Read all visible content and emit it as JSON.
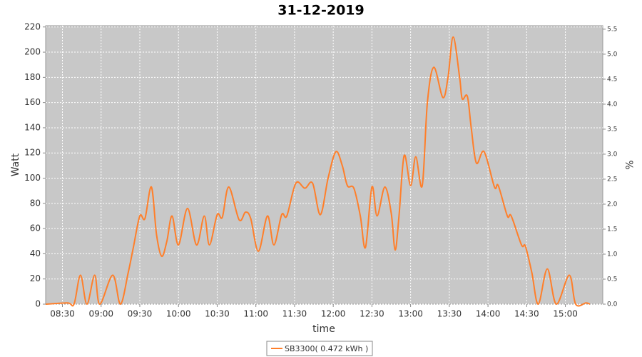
{
  "chart_data": {
    "type": "line",
    "title": "31-12-2019",
    "xlabel": "time",
    "ylabel": "Watt",
    "y2label": "%",
    "xlim": [
      497,
      929
    ],
    "xticks": [
      {
        "value": 510,
        "label": "08:30"
      },
      {
        "value": 540,
        "label": "09:00"
      },
      {
        "value": 570,
        "label": "09:30"
      },
      {
        "value": 600,
        "label": "10:00"
      },
      {
        "value": 630,
        "label": "10:30"
      },
      {
        "value": 660,
        "label": "11:00"
      },
      {
        "value": 690,
        "label": "11:30"
      },
      {
        "value": 720,
        "label": "12:00"
      },
      {
        "value": 750,
        "label": "12:30"
      },
      {
        "value": 780,
        "label": "13:00"
      },
      {
        "value": 810,
        "label": "13:30"
      },
      {
        "value": 840,
        "label": "14:00"
      },
      {
        "value": 870,
        "label": "14:30"
      },
      {
        "value": 900,
        "label": "15:00"
      }
    ],
    "ylim": [
      0,
      221
    ],
    "yticks": [
      0,
      20,
      40,
      60,
      80,
      100,
      120,
      140,
      160,
      180,
      200,
      220
    ],
    "y2lim": [
      0,
      5.57
    ],
    "y2ticks": [
      {
        "value": 0,
        "label": "0.0"
      },
      0.5,
      {
        "value": 1,
        "label": "1.0"
      },
      1.5,
      {
        "value": 2,
        "label": "2.0"
      },
      2.5,
      {
        "value": 3,
        "label": "3.0"
      },
      3.5,
      {
        "value": 4,
        "label": "4.0"
      },
      4.5,
      {
        "value": 5,
        "label": "5.0"
      },
      5.5
    ],
    "grid": true,
    "legend": "bottom",
    "x": [
      497,
      514,
      519,
      524,
      529,
      535,
      539,
      549,
      555,
      561,
      565,
      570,
      574,
      579,
      583,
      587,
      591,
      595,
      600,
      607,
      614,
      620,
      624,
      630,
      634,
      639,
      647,
      652,
      656,
      662,
      669,
      674,
      680,
      684,
      691,
      698,
      704,
      710,
      716,
      722,
      727,
      731,
      736,
      741,
      745,
      750,
      754,
      760,
      765,
      768,
      771,
      775,
      780,
      784,
      789,
      793,
      798,
      805,
      809,
      813,
      818,
      820,
      824,
      827,
      831,
      837,
      845,
      848,
      855,
      858,
      866,
      869,
      874,
      879,
      886,
      893,
      903,
      908,
      916,
      919
    ],
    "series": [
      {
        "name": "SB3300( 0.472 kWh )",
        "color": "#ff7f2a",
        "values": [
          0,
          1,
          0,
          23,
          0,
          23,
          0,
          23,
          0,
          25,
          45,
          70,
          68,
          93,
          55,
          38,
          50,
          70,
          47,
          76,
          47,
          70,
          47,
          71,
          69,
          93,
          67,
          73,
          68,
          42,
          70,
          47,
          71,
          70,
          96,
          92,
          96,
          71,
          100,
          121,
          110,
          94,
          92,
          70,
          45,
          93,
          70,
          93,
          72,
          43,
          70,
          118,
          94,
          117,
          94,
          160,
          188,
          164,
          180,
          212,
          180,
          163,
          165,
          140,
          112,
          121,
          93,
          94,
          70,
          70,
          47,
          46,
          25,
          0,
          28,
          0,
          23,
          0,
          1,
          0
        ]
      }
    ]
  }
}
